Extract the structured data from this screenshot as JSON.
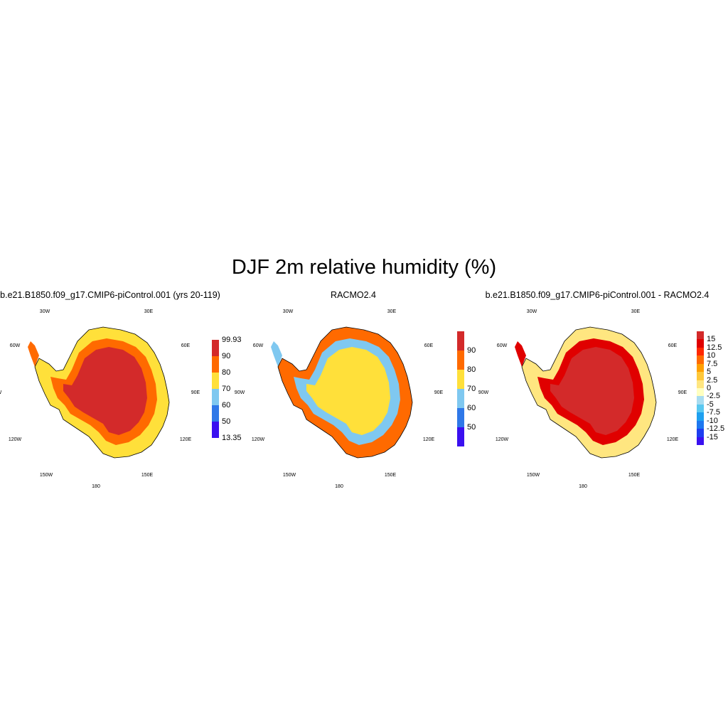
{
  "title": "DJF 2m relative humidity (%)",
  "panels": [
    {
      "id": "model",
      "title": "b.e21.B1850.f09_g17.CMIP6-piControl.001 (yrs 20-119)",
      "colorbar": {
        "colors": [
          "#3a10f0",
          "#2f78e8",
          "#7fc8f0",
          "#ffe03a",
          "#ff6a00",
          "#d32a2a"
        ],
        "tick_labels": [
          "13.35",
          "50",
          "60",
          "70",
          "80",
          "90",
          "99.93"
        ]
      },
      "field": {
        "interior": "#d32a2a",
        "ring": "#ff6a00",
        "edge": "#ffe03a"
      }
    },
    {
      "id": "racmo",
      "title": "RACMO2.4",
      "colorbar": {
        "colors": [
          "#3a10f0",
          "#2f78e8",
          "#7fc8f0",
          "#ffe03a",
          "#ff6a00",
          "#d32a2a"
        ],
        "tick_labels": [
          "50",
          "60",
          "70",
          "80",
          "90"
        ]
      },
      "field": {
        "interior": "#ffe03a",
        "ring": "#7fc8f0",
        "edge": "#ff6a00"
      }
    },
    {
      "id": "diff",
      "title": "b.e21.B1850.f09_g17.CMIP6-piControl.001 - RACMO2.4",
      "colorbar": {
        "colors": [
          "#3a10f0",
          "#1e3ef0",
          "#1e78f0",
          "#1ea0f0",
          "#5ac8f0",
          "#a8dcf0",
          "#ffffc0",
          "#ffe680",
          "#ffc83a",
          "#ffa000",
          "#ff6a00",
          "#ff2800",
          "#e00000",
          "#d32a2a"
        ],
        "tick_labels": [
          "-15",
          "-12.5",
          "-10",
          "-7.5",
          "-5",
          "-2.5",
          "0",
          "2.5",
          "5",
          "7.5",
          "10",
          "12.5",
          "15"
        ]
      },
      "field": {
        "interior": "#d32a2a",
        "ring": "#e00000",
        "edge": "#ffe680"
      }
    }
  ],
  "lon_labels": [
    "30W",
    "30E",
    "60W",
    "60E",
    "90W",
    "90E",
    "120W",
    "120E",
    "150W",
    "150E",
    "180"
  ]
}
